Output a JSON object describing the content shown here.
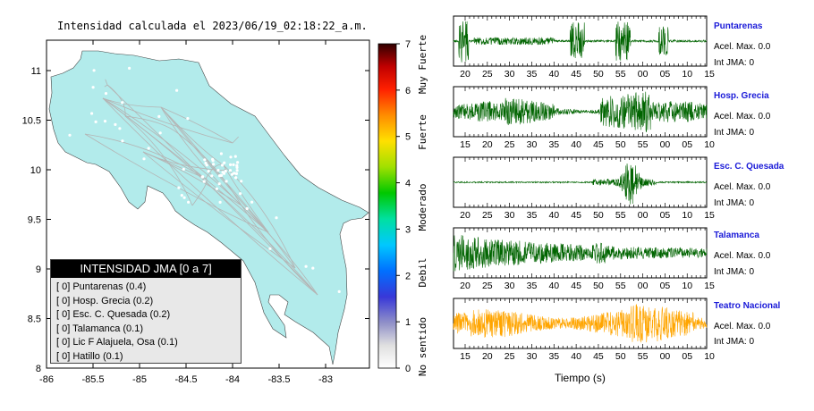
{
  "map": {
    "title": "Intensidad calculada el 2023/06/19_02:18:22_a.m.",
    "lon_ticks": [
      "-86",
      "-85.5",
      "-85",
      "-84.5",
      "-84",
      "-83.5",
      "-83"
    ],
    "lat_ticks": [
      "11",
      "10.5",
      "10",
      "9.5",
      "9",
      "8.5",
      "8"
    ],
    "land_color": "#b2ebeb",
    "road_color": "#b4b4b4"
  },
  "colorbar": {
    "ticks": [
      "0",
      "1",
      "2",
      "3",
      "4",
      "5",
      "6",
      "7"
    ],
    "labels": [
      "No sentido",
      "Debil",
      "Moderado",
      "Fuerte",
      "Muy Fuerte"
    ]
  },
  "legend": {
    "title": "INTENSIDAD JMA [0 a 7]",
    "items": [
      "[ 0]  Puntarenas (0.4)",
      "[ 0]  Hosp. Grecia (0.2)",
      "[ 0]  Esc. C. Quesada (0.2)",
      "[ 0]  Talamanca (0.1)",
      "[ 0]  Lic F Alajuela, Osa (0.1)",
      "[ 0]  Hatillo (0.1)"
    ]
  },
  "waveforms": {
    "xlabel": "Tiempo (s)",
    "panels": [
      {
        "station": "Puntarenas",
        "acel": "Acel. Max. 0.0",
        "int": "Int JMA: 0",
        "ticks": [
          "20",
          "25",
          "30",
          "35",
          "40",
          "45",
          "50",
          "55",
          "00",
          "05",
          "10",
          "15"
        ],
        "color": "#006400"
      },
      {
        "station": "Hosp. Grecia",
        "acel": "Acel. Max. 0.0",
        "int": "Int JMA: 0",
        "ticks": [
          "15",
          "20",
          "25",
          "30",
          "35",
          "40",
          "45",
          "50",
          "55",
          "00",
          "05",
          "10"
        ],
        "color": "#006400"
      },
      {
        "station": "Esc. C. Quesada",
        "acel": "Acel. Max. 0.0",
        "int": "Int JMA: 0",
        "ticks": [
          "20",
          "25",
          "30",
          "35",
          "40",
          "45",
          "50",
          "55",
          "00",
          "05",
          "10",
          "15"
        ],
        "color": "#006400"
      },
      {
        "station": "Talamanca",
        "acel": "Acel. Max. 0.0",
        "int": "Int JMA: 0",
        "ticks": [
          "20",
          "25",
          "30",
          "35",
          "40",
          "45",
          "50",
          "55",
          "00",
          "05",
          "10",
          "15"
        ],
        "color": "#006400"
      },
      {
        "station": "Teatro Nacional",
        "acel": "Acel. Max. 0.0",
        "int": "Int JMA: 0",
        "ticks": [
          "15",
          "20",
          "25",
          "30",
          "35",
          "40",
          "45",
          "50",
          "55",
          "00",
          "05",
          "10"
        ],
        "color": "#ffa500"
      }
    ]
  },
  "chart_data": [
    {
      "type": "heatmap",
      "title": "Intensidad calculada el 2023/06/19_02:18:22_a.m.",
      "xlabel": "",
      "ylabel": "",
      "xlim": [
        -86,
        -82.6
      ],
      "ylim": [
        8,
        11.3
      ],
      "colorbar_range": [
        0,
        7
      ],
      "grid": false
    },
    {
      "type": "line",
      "xlabel": "Tiempo (s)",
      "series_names": [
        "Puntarenas",
        "Hosp. Grecia",
        "Esc. C. Quesada",
        "Talamanca",
        "Teatro Nacional"
      ]
    }
  ]
}
